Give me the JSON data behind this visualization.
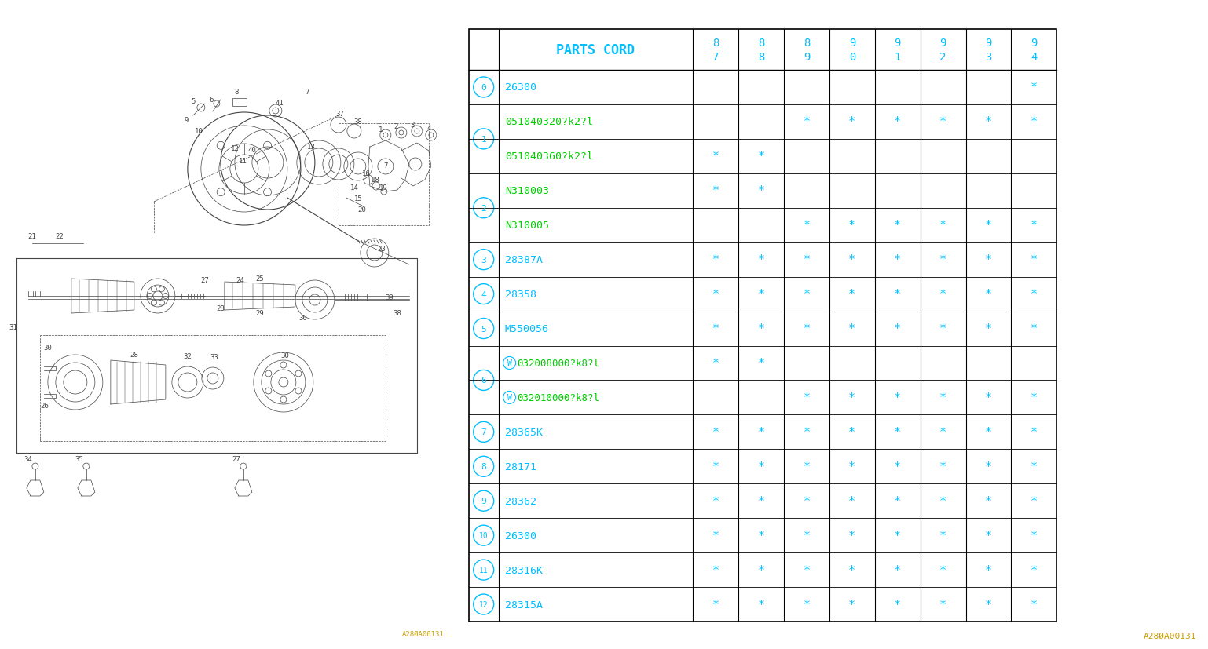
{
  "bg_color": "#ffffff",
  "col_header": "PARTS CORD",
  "year_labels_top": [
    "8",
    "8",
    "8",
    "9",
    "9",
    "9",
    "9",
    "9"
  ],
  "year_labels_bot": [
    "7",
    "8",
    "9",
    "0",
    "1",
    "2",
    "3",
    "4"
  ],
  "rows": [
    {
      "num": "0",
      "part": "26300",
      "part_color": "#00bfff",
      "marks": [
        0,
        0,
        0,
        0,
        0,
        0,
        0,
        1
      ]
    },
    {
      "num": "1",
      "part": "051040320?k2?l",
      "part_color": "#00cc00",
      "marks": [
        0,
        0,
        1,
        1,
        1,
        1,
        1,
        1
      ]
    },
    {
      "num": "1",
      "part": "051040360?k2?l",
      "part_color": "#00cc00",
      "marks": [
        1,
        1,
        0,
        0,
        0,
        0,
        0,
        0
      ]
    },
    {
      "num": "2",
      "part": "N310003",
      "part_color": "#00cc00",
      "marks": [
        1,
        1,
        0,
        0,
        0,
        0,
        0,
        0
      ]
    },
    {
      "num": "2",
      "part": "N310005",
      "part_color": "#00cc00",
      "marks": [
        0,
        0,
        1,
        1,
        1,
        1,
        1,
        1
      ]
    },
    {
      "num": "3",
      "part": "28387A",
      "part_color": "#00bfff",
      "marks": [
        1,
        1,
        1,
        1,
        1,
        1,
        1,
        1
      ]
    },
    {
      "num": "4",
      "part": "28358",
      "part_color": "#00bfff",
      "marks": [
        1,
        1,
        1,
        1,
        1,
        1,
        1,
        1
      ]
    },
    {
      "num": "5",
      "part": "M550056",
      "part_color": "#00bfff",
      "marks": [
        1,
        1,
        1,
        1,
        1,
        1,
        1,
        1
      ]
    },
    {
      "num": "6",
      "part": "W032008000?k8?l",
      "part_color": "#00cc00",
      "marks": [
        1,
        1,
        0,
        0,
        0,
        0,
        0,
        0
      ]
    },
    {
      "num": "6",
      "part": "W032010000?k8?l",
      "part_color": "#00cc00",
      "marks": [
        0,
        0,
        1,
        1,
        1,
        1,
        1,
        1
      ]
    },
    {
      "num": "7",
      "part": "28365K",
      "part_color": "#00bfff",
      "marks": [
        1,
        1,
        1,
        1,
        1,
        1,
        1,
        1
      ]
    },
    {
      "num": "8",
      "part": "28171",
      "part_color": "#00bfff",
      "marks": [
        1,
        1,
        1,
        1,
        1,
        1,
        1,
        1
      ]
    },
    {
      "num": "9",
      "part": "28362",
      "part_color": "#00bfff",
      "marks": [
        1,
        1,
        1,
        1,
        1,
        1,
        1,
        1
      ]
    },
    {
      "num": "10",
      "part": "26300",
      "part_color": "#00bfff",
      "marks": [
        1,
        1,
        1,
        1,
        1,
        1,
        1,
        1
      ]
    },
    {
      "num": "11",
      "part": "28316K",
      "part_color": "#00bfff",
      "marks": [
        1,
        1,
        1,
        1,
        1,
        1,
        1,
        1
      ]
    },
    {
      "num": "12",
      "part": "28315A",
      "part_color": "#00bfff",
      "marks": [
        1,
        1,
        1,
        1,
        1,
        1,
        1,
        1
      ]
    }
  ],
  "cyan": "#00bfff",
  "green": "#00cc00",
  "yellow": "#c8a000",
  "diagram_color": "#444444",
  "watermark": "A28ØA00131"
}
